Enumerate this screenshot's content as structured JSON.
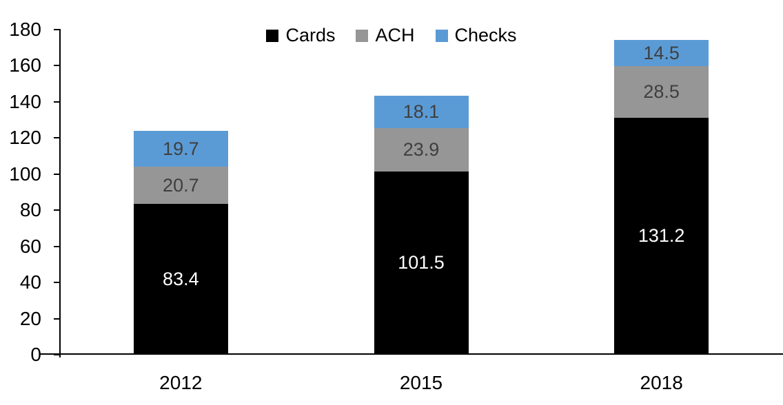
{
  "chart_data": {
    "type": "bar",
    "stacked": true,
    "title": "",
    "xlabel": "",
    "ylabel": "",
    "categories": [
      "2012",
      "2015",
      "2018"
    ],
    "series": [
      {
        "name": "Cards",
        "color": "#000000",
        "label_color": "#ffffff",
        "values": [
          83.4,
          101.5,
          131.2
        ]
      },
      {
        "name": "ACH",
        "color": "#969696",
        "label_color": "#3f3f3f",
        "values": [
          20.7,
          23.9,
          28.5
        ]
      },
      {
        "name": "Checks",
        "color": "#5b9bd5",
        "label_color": "#3f3f3f",
        "values": [
          19.7,
          18.1,
          14.5
        ]
      }
    ],
    "totals": [
      123.8,
      143.5,
      174.2
    ],
    "ylim": [
      0,
      180
    ],
    "ytick_step": 20,
    "ytick_labels": [
      "0",
      "20",
      "40",
      "60",
      "80",
      "100",
      "120",
      "140",
      "160",
      "180"
    ],
    "grid": false,
    "legend_position": "top",
    "axis_color": "#000000",
    "background_color": "#ffffff"
  }
}
